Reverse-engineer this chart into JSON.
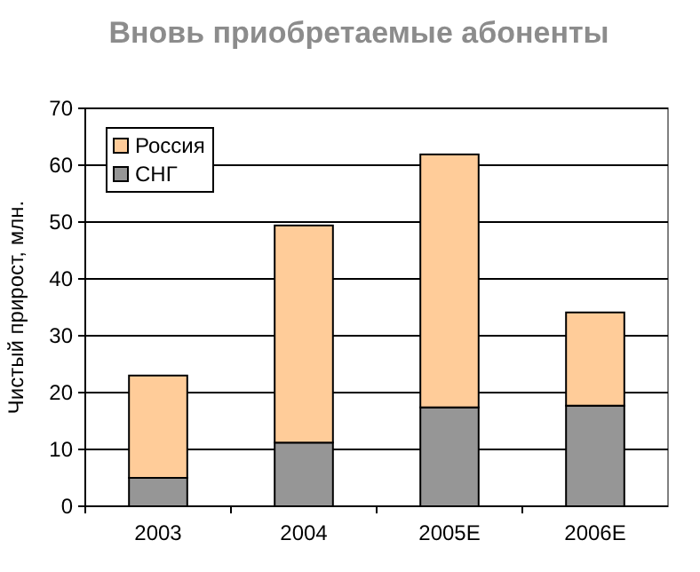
{
  "chart_data": {
    "type": "bar",
    "title": "Вновь приобретаемые абоненты",
    "ylabel": "Чистый прирост, млн.",
    "categories": [
      "2003",
      "2004",
      "2005E",
      "2006E"
    ],
    "stacked": true,
    "series": [
      {
        "name": "СНГ",
        "color": "#969696",
        "values": [
          5,
          11.2,
          17.4,
          17.7
        ]
      },
      {
        "name": "Россия",
        "color": "#ffcc99",
        "values": [
          18,
          38.2,
          44.5,
          16.4
        ]
      }
    ],
    "ylim": [
      0,
      70
    ],
    "yticks": [
      0,
      10,
      20,
      30,
      40,
      50,
      60,
      70
    ],
    "grid": "y",
    "legend": "top left"
  }
}
